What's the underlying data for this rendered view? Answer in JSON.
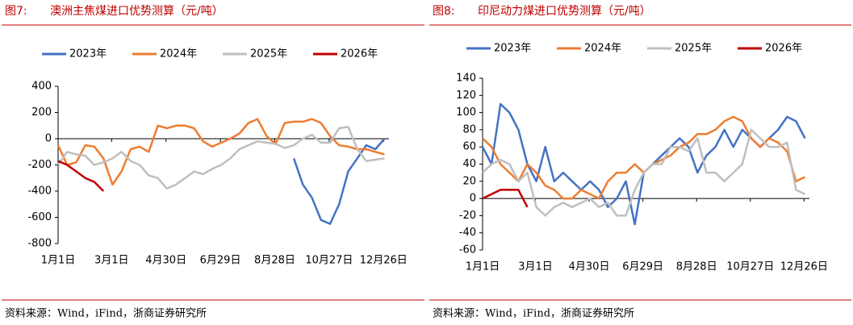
{
  "chart_data": [
    {
      "type": "line",
      "label": "图7:",
      "title": "澳洲主焦煤进口优势测算（元/吨）",
      "source": "资料来源：Wind，iFind，浙商证券研究所",
      "x": [
        0,
        10,
        20,
        30,
        40,
        50,
        60,
        70,
        80,
        90,
        100,
        110,
        120,
        130,
        140,
        150,
        160,
        170,
        180,
        190,
        200,
        210,
        220,
        230,
        240,
        250,
        260,
        270,
        280,
        290,
        300,
        310,
        320,
        330,
        340,
        350,
        360
      ],
      "xlim": [
        0,
        365
      ],
      "xticks": [
        {
          "value": 0,
          "label": "1月1日"
        },
        {
          "value": 59,
          "label": "3月1日"
        },
        {
          "value": 119,
          "label": "4月30日"
        },
        {
          "value": 179,
          "label": "6月29日"
        },
        {
          "value": 239,
          "label": "8月28日"
        },
        {
          "value": 299,
          "label": "10月27日"
        },
        {
          "value": 359,
          "label": "12月26日"
        }
      ],
      "ylim": [
        -800,
        400
      ],
      "yticks": [
        -800,
        -600,
        -400,
        -200,
        0,
        200,
        400
      ],
      "series": [
        {
          "name": "2023年",
          "color": "#4472c4",
          "values": [
            null,
            null,
            null,
            null,
            null,
            null,
            null,
            null,
            null,
            null,
            null,
            null,
            null,
            null,
            null,
            null,
            null,
            null,
            null,
            null,
            null,
            null,
            null,
            null,
            null,
            null,
            -150,
            -350,
            -450,
            -620,
            -650,
            -500,
            -250,
            -150,
            -50,
            -80,
            0
          ]
        },
        {
          "name": "2024年",
          "color": "#ed7d31",
          "values": [
            -50,
            -200,
            -180,
            -50,
            -60,
            -150,
            -350,
            -250,
            -80,
            -60,
            -100,
            100,
            80,
            100,
            100,
            80,
            -20,
            -60,
            -30,
            0,
            40,
            120,
            150,
            20,
            -40,
            120,
            130,
            130,
            150,
            120,
            20,
            -50,
            -60,
            -80,
            -80,
            -100,
            -120
          ]
        },
        {
          "name": "2025年",
          "color": "#bfbfbf",
          "values": [
            -200,
            -100,
            -120,
            -130,
            -200,
            -180,
            -150,
            -100,
            -170,
            -200,
            -280,
            -300,
            -380,
            -350,
            -300,
            -250,
            -270,
            -230,
            -200,
            -150,
            -80,
            -50,
            -20,
            -30,
            -40,
            -70,
            -50,
            0,
            30,
            -30,
            -30,
            80,
            90,
            -80,
            -170,
            -160,
            -150
          ]
        },
        {
          "name": "2026年",
          "color": "#c00000",
          "values": [
            -170,
            -200,
            -250,
            -300,
            -330,
            -400,
            null,
            null,
            null,
            null,
            null,
            null,
            null,
            null,
            null,
            null,
            null,
            null,
            null,
            null,
            null,
            null,
            null,
            null,
            null,
            null,
            null,
            null,
            null,
            null,
            null,
            null,
            null,
            null,
            null,
            null,
            null
          ]
        }
      ]
    },
    {
      "type": "line",
      "label": "图8:",
      "title": "印尼动力煤进口优势测算（元/吨）",
      "source": "资料来源：Wind，iFind，浙商证券研究所",
      "x": [
        0,
        10,
        20,
        30,
        40,
        50,
        60,
        70,
        80,
        90,
        100,
        110,
        120,
        130,
        140,
        150,
        160,
        170,
        180,
        190,
        200,
        210,
        220,
        230,
        240,
        250,
        260,
        270,
        280,
        290,
        300,
        310,
        320,
        330,
        340,
        350,
        360
      ],
      "xlim": [
        0,
        365
      ],
      "xticks": [
        {
          "value": 0,
          "label": "1月1日"
        },
        {
          "value": 59,
          "label": "3月1日"
        },
        {
          "value": 119,
          "label": "4月30日"
        },
        {
          "value": 179,
          "label": "6月29日"
        },
        {
          "value": 239,
          "label": "8月28日"
        },
        {
          "value": 299,
          "label": "10月27日"
        },
        {
          "value": 359,
          "label": "12月26日"
        }
      ],
      "ylim": [
        -60,
        140
      ],
      "yticks": [
        -60,
        -40,
        -20,
        0,
        20,
        40,
        60,
        80,
        100,
        120,
        140
      ],
      "series": [
        {
          "name": "2023年",
          "color": "#4472c4",
          "values": [
            60,
            40,
            110,
            100,
            80,
            40,
            20,
            60,
            20,
            30,
            20,
            10,
            20,
            10,
            -10,
            0,
            20,
            -30,
            30,
            40,
            50,
            60,
            70,
            60,
            30,
            50,
            60,
            80,
            60,
            80,
            70,
            60,
            70,
            80,
            95,
            90,
            70
          ]
        },
        {
          "name": "2024年",
          "color": "#ed7d31",
          "values": [
            70,
            60,
            40,
            30,
            20,
            40,
            30,
            15,
            10,
            0,
            0,
            10,
            5,
            0,
            20,
            30,
            30,
            40,
            30,
            40,
            45,
            50,
            60,
            65,
            75,
            75,
            80,
            90,
            95,
            90,
            70,
            60,
            70,
            65,
            55,
            20,
            25
          ]
        },
        {
          "name": "2025年",
          "color": "#bfbfbf",
          "values": [
            30,
            40,
            45,
            40,
            20,
            30,
            -10,
            -20,
            -10,
            -5,
            -10,
            -5,
            0,
            -10,
            -5,
            -20,
            -20,
            10,
            30,
            40,
            40,
            60,
            60,
            55,
            70,
            30,
            30,
            20,
            30,
            40,
            80,
            70,
            60,
            60,
            65,
            10,
            5
          ]
        },
        {
          "name": "2026年",
          "color": "#c00000",
          "values": [
            0,
            5,
            10,
            10,
            10,
            -10,
            null,
            null,
            null,
            null,
            null,
            null,
            null,
            null,
            null,
            null,
            null,
            null,
            null,
            null,
            null,
            null,
            null,
            null,
            null,
            null,
            null,
            null,
            null,
            null,
            null,
            null,
            null,
            null,
            null,
            null,
            null
          ]
        }
      ]
    }
  ]
}
